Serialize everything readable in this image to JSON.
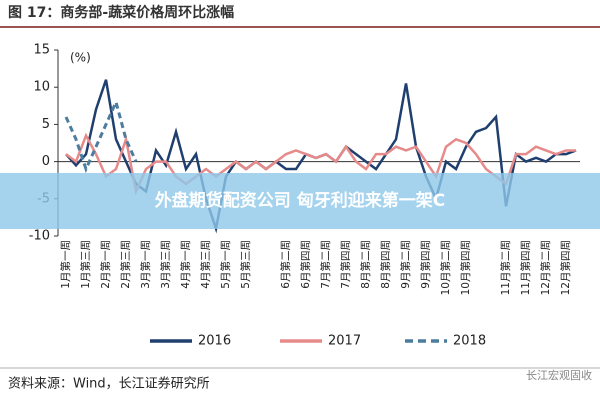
{
  "chart_data": {
    "type": "line",
    "title": "图 17：商务部-蔬菜价格周环比涨幅",
    "y_label": "(%)",
    "categories": [
      "1月第一周",
      null,
      "1月第三周",
      null,
      "2月第一周",
      null,
      "2月第三周",
      null,
      "3月第一周",
      null,
      "3月第三周",
      null,
      "4月第一周",
      null,
      "4月第三周",
      null,
      "5月第一周",
      null,
      "5月第三周",
      null,
      null,
      null,
      "6月第二周",
      null,
      "6月第四周",
      null,
      "7月第二周",
      null,
      "7月第四周",
      null,
      "8月第二周",
      null,
      "8月第四周",
      null,
      "9月第二周",
      null,
      "9月第四周",
      null,
      "10月第二周",
      null,
      "10月第四周",
      null,
      null,
      null,
      "11月第二周",
      null,
      "11月第四周",
      null,
      "12月第二周",
      null,
      "12月第四周",
      null
    ],
    "series": [
      {
        "name": "2016",
        "color": "#1f3f6e",
        "line_style": "solid",
        "values": [
          1,
          -0.5,
          1,
          7,
          11,
          3,
          0,
          -3,
          -4,
          1.5,
          -0.5,
          4,
          -1,
          1,
          -5,
          -9,
          -2,
          0,
          -1,
          0,
          -1,
          0,
          -1,
          -1,
          1,
          0.5,
          1,
          0,
          2,
          1,
          0,
          -1,
          1,
          3,
          10.5,
          2,
          -2,
          -5,
          0,
          -1,
          2,
          4,
          4.5,
          6,
          -6,
          1,
          0,
          0.5,
          0,
          1,
          1,
          1.5
        ]
      },
      {
        "name": "2017",
        "color": "#e68a8a",
        "line_style": "solid",
        "values": [
          1,
          0,
          3.5,
          1,
          -2,
          -1,
          3,
          -4,
          -1,
          0,
          0,
          -2,
          -3,
          -2,
          -1,
          -2,
          -1,
          0,
          -1,
          0,
          -1,
          0,
          1,
          1.5,
          1,
          0.5,
          1,
          0,
          2,
          0,
          -1,
          1,
          1,
          2,
          1.5,
          2,
          0,
          -2,
          2,
          3,
          2.5,
          1,
          -1,
          -2,
          -3,
          1,
          1,
          2,
          1.5,
          1,
          1.5,
          1.5
        ]
      },
      {
        "name": "2018",
        "color": "#4d7d9e",
        "line_style": "dashed",
        "values": [
          6,
          3,
          -1,
          2,
          5,
          8,
          3,
          0,
          null,
          null,
          null,
          null,
          null,
          null,
          null,
          null,
          null,
          null,
          null,
          null,
          null,
          null,
          null,
          null,
          null,
          null,
          null,
          null,
          null,
          null,
          null,
          null,
          null,
          null,
          null,
          null,
          null,
          null,
          null,
          null,
          null,
          null,
          null,
          null,
          null,
          null,
          null,
          null,
          null,
          null,
          null,
          null
        ]
      }
    ],
    "ylim": [
      -10,
      15
    ],
    "yticks": [
      -10,
      -5,
      0,
      5,
      10,
      15
    ]
  },
  "source": "资料来源：Wind，长江证券研究所",
  "logo": "长江宏观固收",
  "overlay_text": "外盘期货配资公司 匈牙利迎来第一架C"
}
